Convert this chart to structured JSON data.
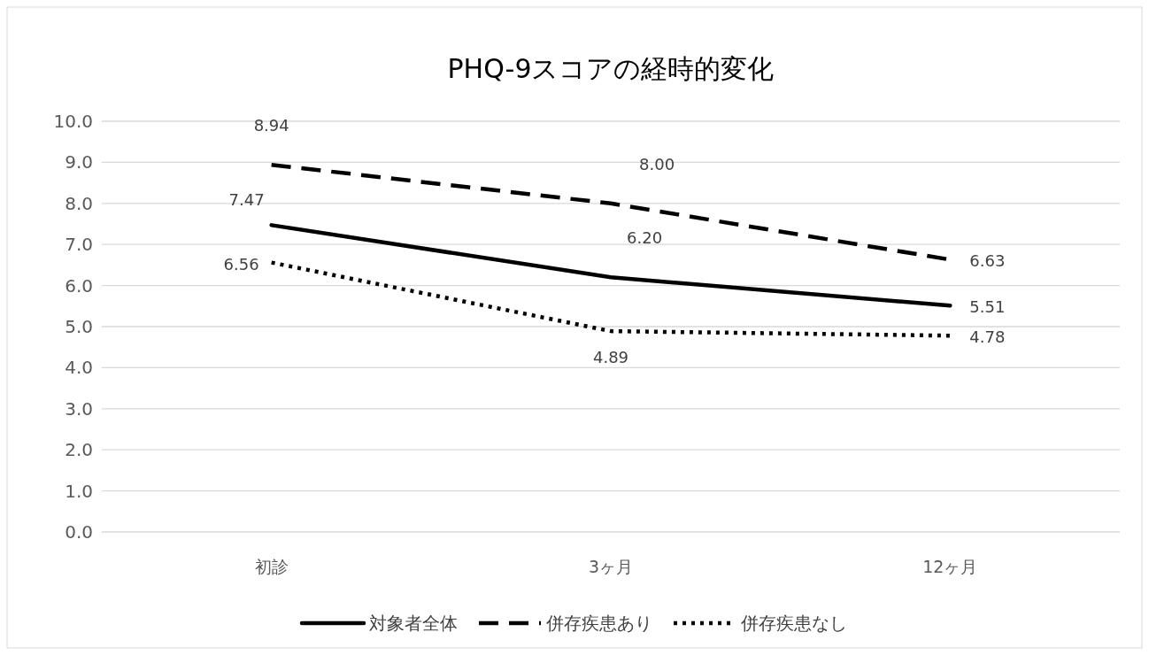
{
  "chart_data": {
    "type": "line",
    "title": "PHQ-9スコアの経時的変化",
    "categories": [
      "初診",
      "3ヶ月",
      "12ヶ月"
    ],
    "series": [
      {
        "name": "対象者全体",
        "color": "#000000",
        "line_style": "solid",
        "values": [
          7.47,
          6.2,
          5.51
        ],
        "value_labels": [
          "7.47",
          "6.20",
          "5.51"
        ]
      },
      {
        "name": "併存疾患あり",
        "color": "#000000",
        "line_style": "dashed",
        "values": [
          8.94,
          8.0,
          6.63
        ],
        "value_labels": [
          "8.94",
          "8.00",
          "6.63"
        ]
      },
      {
        "name": "併存疾患なし",
        "color": "#000000",
        "line_style": "dotted",
        "values": [
          6.56,
          4.89,
          4.78
        ],
        "value_labels": [
          "6.56",
          "4.89",
          "4.78"
        ]
      }
    ],
    "ylim": [
      0,
      10
    ],
    "yticks": [
      {
        "value": 0,
        "label": "0.0"
      },
      {
        "value": 1,
        "label": "1.0"
      },
      {
        "value": 2,
        "label": "2.0"
      },
      {
        "value": 3,
        "label": "3.0"
      },
      {
        "value": 4,
        "label": "4.0"
      },
      {
        "value": 5,
        "label": "5.0"
      },
      {
        "value": 6,
        "label": "6.0"
      },
      {
        "value": 7,
        "label": "7.0"
      },
      {
        "value": 8,
        "label": "8.0"
      },
      {
        "value": 9,
        "label": "9.0"
      },
      {
        "value": 10,
        "label": "10.0"
      }
    ],
    "grid": "y",
    "legend": "bottom",
    "marker": "none"
  }
}
